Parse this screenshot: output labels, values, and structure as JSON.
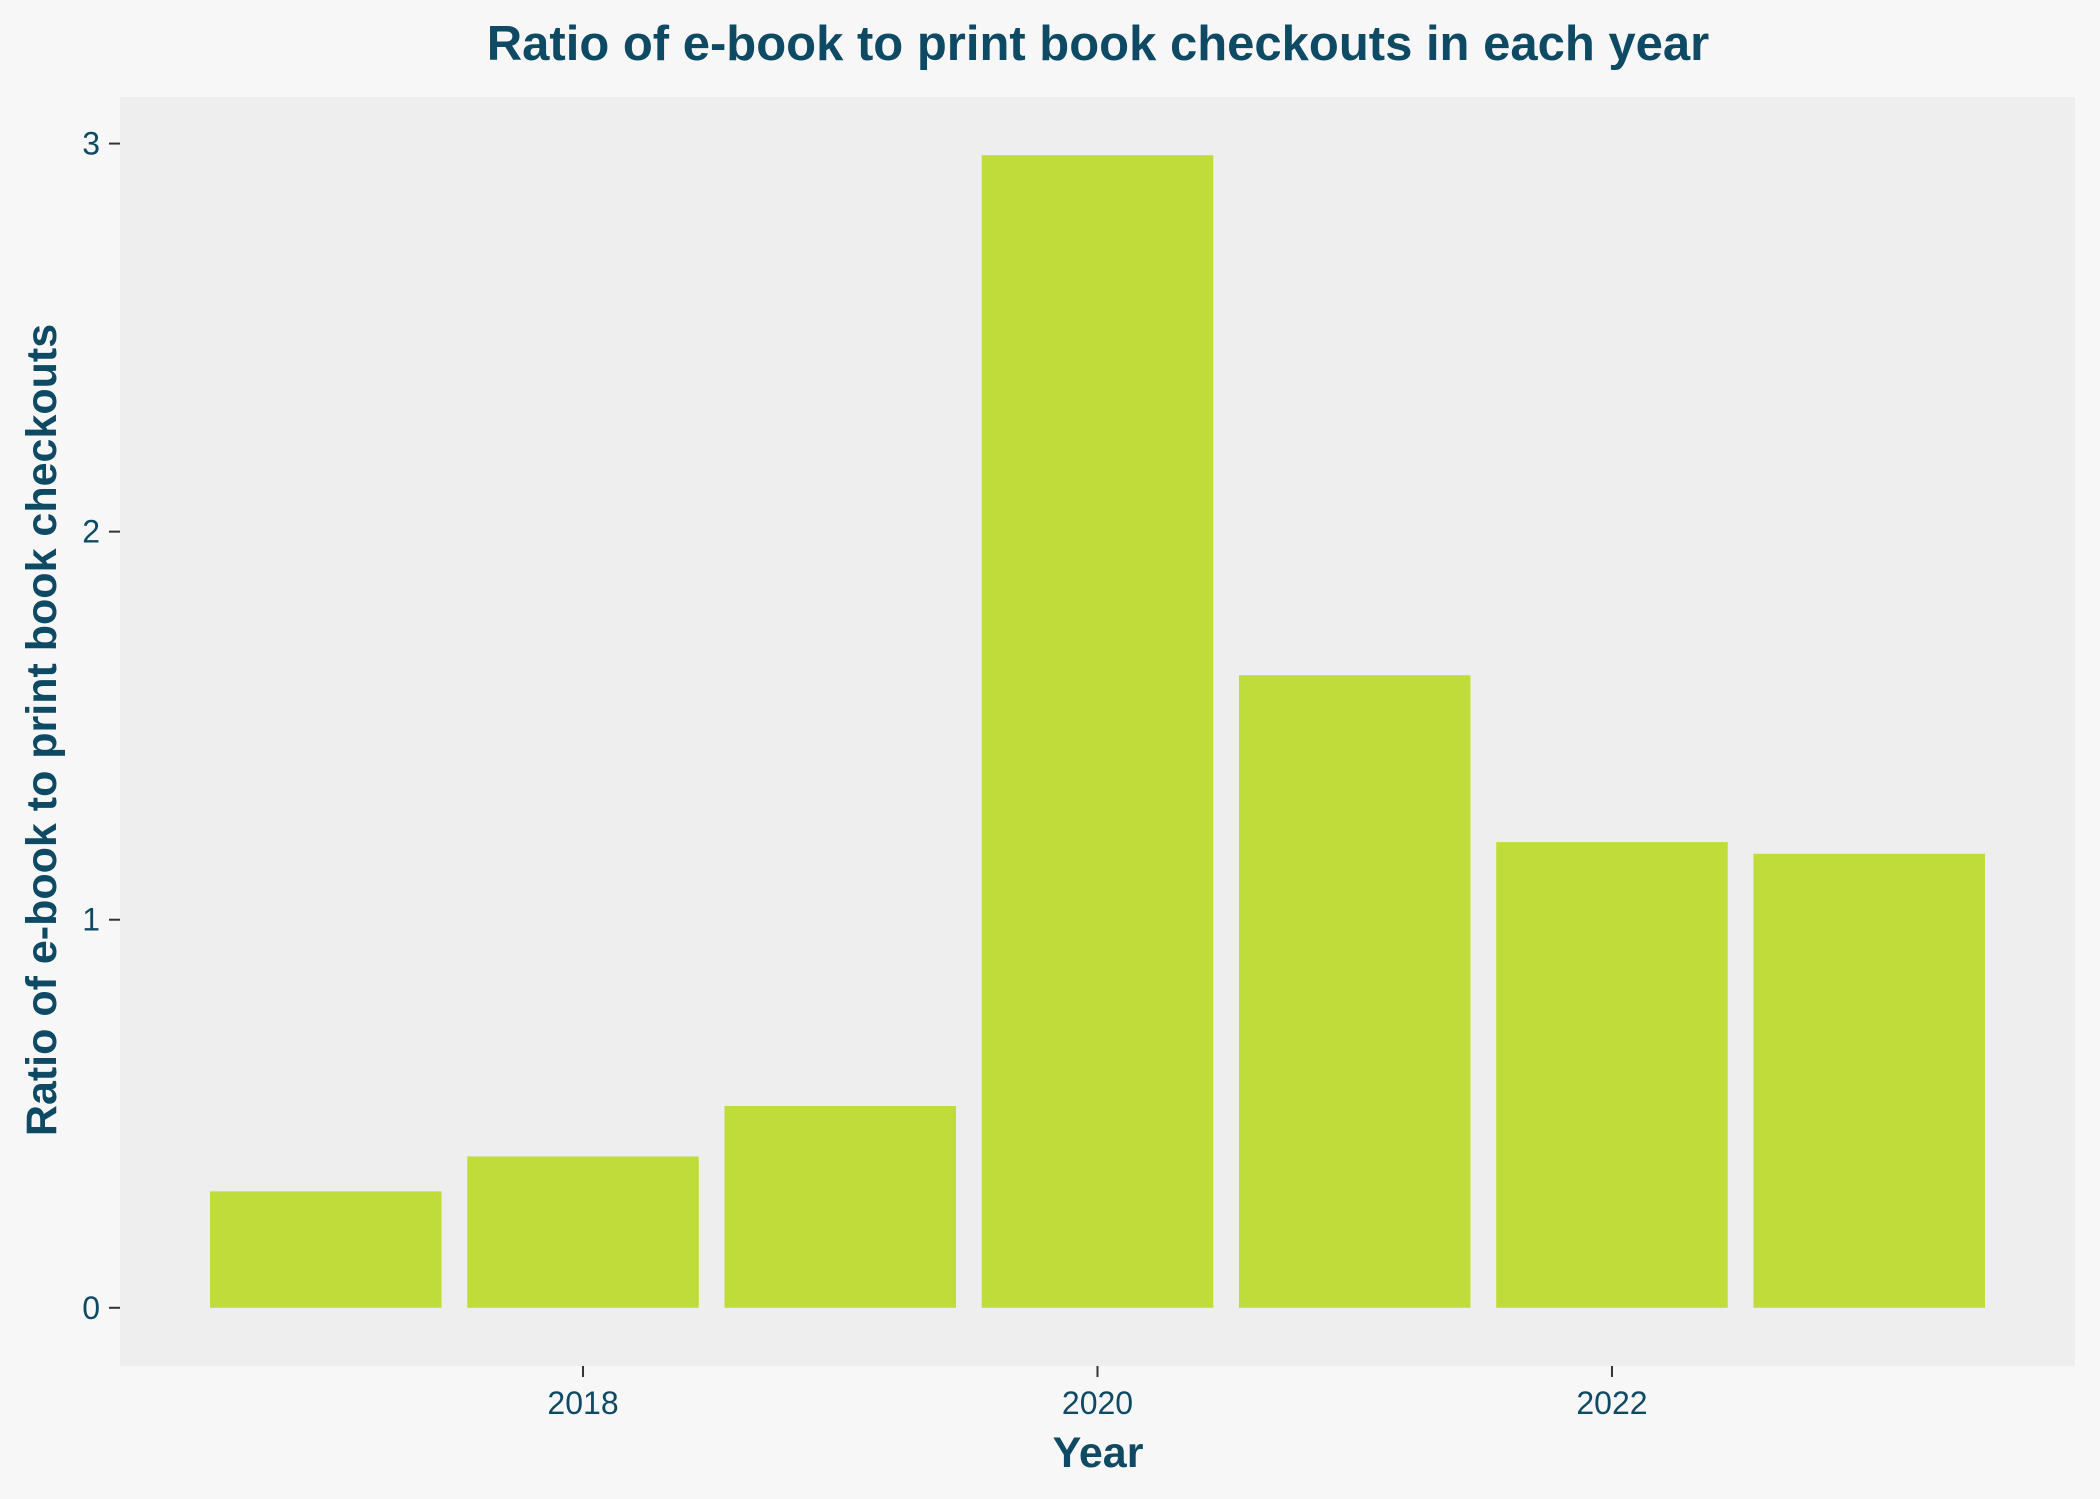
{
  "chart_data": {
    "type": "bar",
    "title": "Ratio of e-book to print book checkouts in each year",
    "xlabel": "Year",
    "ylabel": "Ratio of e-book to print book checkouts",
    "x": [
      2017,
      2018,
      2019,
      2020,
      2021,
      2022,
      2023
    ],
    "values": [
      0.3,
      0.39,
      0.52,
      2.97,
      1.63,
      1.2,
      1.17
    ],
    "xticks": [
      2018,
      2020,
      2022
    ],
    "yticks": [
      0,
      1,
      2,
      3
    ],
    "xlim": [
      2016.2,
      2023.8
    ],
    "ylim": [
      -0.15,
      3.12
    ],
    "grid": false,
    "legend": "none"
  },
  "colors": {
    "background": "#f7f7f7",
    "panel": "#eeeeee",
    "bar": "#c0dc3a",
    "text": "#0e4a63"
  }
}
